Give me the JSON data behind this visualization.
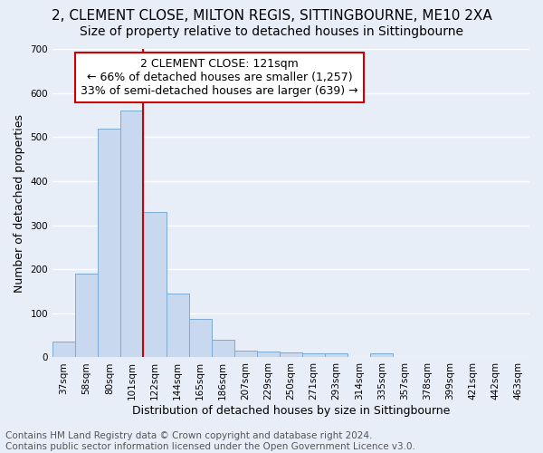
{
  "title": "2, CLEMENT CLOSE, MILTON REGIS, SITTINGBOURNE, ME10 2XA",
  "subtitle": "Size of property relative to detached houses in Sittingbourne",
  "xlabel": "Distribution of detached houses by size in Sittingbourne",
  "ylabel": "Number of detached properties",
  "footnote": "Contains HM Land Registry data © Crown copyright and database right 2024.\nContains public sector information licensed under the Open Government Licence v3.0.",
  "categories": [
    "37sqm",
    "58sqm",
    "80sqm",
    "101sqm",
    "122sqm",
    "144sqm",
    "165sqm",
    "186sqm",
    "207sqm",
    "229sqm",
    "250sqm",
    "271sqm",
    "293sqm",
    "314sqm",
    "335sqm",
    "357sqm",
    "378sqm",
    "399sqm",
    "421sqm",
    "442sqm",
    "463sqm"
  ],
  "values": [
    35,
    190,
    520,
    560,
    330,
    145,
    87,
    40,
    15,
    13,
    12,
    10,
    10,
    0,
    10,
    0,
    0,
    0,
    0,
    0,
    0
  ],
  "bar_color": "#c8d8ee",
  "bar_edge_color": "#7baad4",
  "highlight_index": 4,
  "highlight_color": "#cc0000",
  "annotation_box_text": "2 CLEMENT CLOSE: 121sqm\n← 66% of detached houses are smaller (1,257)\n33% of semi-detached houses are larger (639) →",
  "annotation_box_color": "#cc0000",
  "ylim": [
    0,
    700
  ],
  "yticks": [
    0,
    100,
    200,
    300,
    400,
    500,
    600,
    700
  ],
  "background_color": "#e8eef8",
  "grid_color": "#ffffff",
  "title_fontsize": 11,
  "subtitle_fontsize": 10,
  "axis_label_fontsize": 9,
  "tick_fontsize": 7.5,
  "annotation_fontsize": 9,
  "footnote_fontsize": 7.5
}
